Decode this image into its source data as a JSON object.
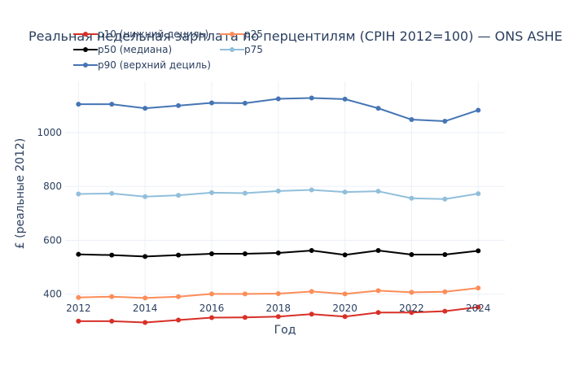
{
  "chart_data": {
    "type": "line",
    "title": "Реальная недельная зарплата по перцентилям (CPIH 2012=100) — ONS ASHE",
    "xlabel": "Год",
    "ylabel": "£ (реальные 2012)",
    "x": [
      2012,
      2013,
      2014,
      2015,
      2016,
      2017,
      2018,
      2019,
      2020,
      2021,
      2022,
      2023,
      2024
    ],
    "x_ticks": [
      "2012",
      "2014",
      "2016",
      "2018",
      "2020",
      "2022",
      "2024"
    ],
    "y_ticks": [
      "400",
      "600",
      "800",
      "1000"
    ],
    "xlim": [
      2011.6,
      2024.8
    ],
    "ylim": [
      375,
      1190
    ],
    "grid": true,
    "legend_position": "top-left",
    "series": [
      {
        "name": "p10 (нижний дециль)",
        "color": "#d73027",
        "values": [
          300,
          300,
          295,
          304,
          313,
          314,
          317,
          326,
          317,
          332,
          332,
          337,
          352
        ]
      },
      {
        "name": "p25",
        "color": "#fc8d59",
        "values": [
          388,
          391,
          386,
          391,
          401,
          401,
          402,
          410,
          401,
          413,
          407,
          409,
          423
        ]
      },
      {
        "name": "p50 (медиана)",
        "color": "#000000",
        "values": [
          548,
          545,
          540,
          545,
          550,
          550,
          553,
          562,
          546,
          562,
          547,
          547,
          561
        ]
      },
      {
        "name": "p75",
        "color": "#91bfdb",
        "values": [
          772,
          774,
          762,
          767,
          777,
          775,
          783,
          787,
          779,
          782,
          756,
          753,
          773
        ]
      },
      {
        "name": "p90 (верхний дециль)",
        "color": "#4575b4",
        "values": [
          1105,
          1105,
          1090,
          1100,
          1110,
          1109,
          1125,
          1128,
          1124,
          1090,
          1048,
          1042,
          1083
        ]
      }
    ]
  }
}
